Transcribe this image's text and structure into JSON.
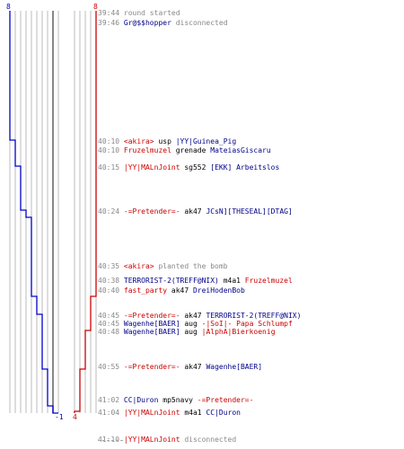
{
  "scoreboard": {
    "blue_top": "8",
    "red_top": "8",
    "blue_bottom": "-1",
    "red_bottom": "4",
    "colors": {
      "blue": "#0000cc",
      "red": "#cc0000",
      "grid": "#bbbbbb",
      "axis": "#555555"
    }
  },
  "events": [
    {
      "time": "39:44",
      "parts": [
        {
          "text": "round started",
          "c": "grey"
        }
      ]
    },
    {
      "time": "39:46",
      "parts": [
        {
          "text": "Gr@$$hopper",
          "c": "blue"
        },
        {
          "text": " disconnected",
          "c": "grey"
        }
      ]
    },
    {
      "time": "40:10",
      "parts": [
        {
          "text": "<akira>",
          "c": "red"
        },
        {
          "text": " usp ",
          "c": "dark"
        },
        {
          "text": "|YY|Guinea_Pig",
          "c": "blue"
        }
      ]
    },
    {
      "time": "40:10",
      "parts": [
        {
          "text": "Fruzelmuzel",
          "c": "red"
        },
        {
          "text": " grenade ",
          "c": "dark"
        },
        {
          "text": "MateiasGiscaru",
          "c": "blue"
        }
      ]
    },
    {
      "time": "40:15",
      "parts": [
        {
          "text": "|YY|MALnJoint",
          "c": "red"
        },
        {
          "text": " sg552 ",
          "c": "dark"
        },
        {
          "text": "[EKK] Arbeitslos",
          "c": "blue"
        }
      ]
    },
    {
      "time": "40:24",
      "parts": [
        {
          "text": "-=Pretender=-",
          "c": "red"
        },
        {
          "text": " ak47 ",
          "c": "dark"
        },
        {
          "text": "JCsN][THESEAL][DTAG]",
          "c": "blue"
        }
      ]
    },
    {
      "time": "40:35",
      "parts": [
        {
          "text": "<akira>",
          "c": "red"
        },
        {
          "text": " planted the bomb",
          "c": "grey"
        }
      ]
    },
    {
      "time": "40:38",
      "parts": [
        {
          "text": "TERRORIST-2(TREFF@NIX)",
          "c": "blue"
        },
        {
          "text": " m4a1 ",
          "c": "dark"
        },
        {
          "text": "Fruzelmuzel",
          "c": "red"
        }
      ]
    },
    {
      "time": "40:40",
      "parts": [
        {
          "text": "fast_party",
          "c": "red"
        },
        {
          "text": " ak47 ",
          "c": "dark"
        },
        {
          "text": "DreiHodenBob",
          "c": "blue"
        }
      ]
    },
    {
      "time": "40:45",
      "parts": [
        {
          "text": "-=Pretender=-",
          "c": "red"
        },
        {
          "text": " ak47 ",
          "c": "dark"
        },
        {
          "text": "TERRORIST-2(TREFF@NIX)",
          "c": "blue"
        }
      ]
    },
    {
      "time": "40:45",
      "parts": [
        {
          "text": "Wagenhe[BAER]",
          "c": "blue"
        },
        {
          "text": " aug ",
          "c": "dark"
        },
        {
          "text": "-|SoI|- Papa Schlumpf",
          "c": "red"
        }
      ]
    },
    {
      "time": "40:48",
      "parts": [
        {
          "text": "Wagenhe[BAER]",
          "c": "blue"
        },
        {
          "text": " aug ",
          "c": "dark"
        },
        {
          "text": "|AlphA|Bierkoenig",
          "c": "red"
        }
      ]
    },
    {
      "time": "40:55",
      "parts": [
        {
          "text": "-=Pretender=-",
          "c": "red"
        },
        {
          "text": " ak47 ",
          "c": "dark"
        },
        {
          "text": "Wagenhe[BAER]",
          "c": "blue"
        }
      ]
    },
    {
      "time": "41:02",
      "parts": [
        {
          "text": "CC|Duron",
          "c": "blue"
        },
        {
          "text": " mp5navy ",
          "c": "dark"
        },
        {
          "text": "-=Pretender=-",
          "c": "red"
        }
      ]
    },
    {
      "time": "41:04",
      "parts": [
        {
          "text": "|YY|MALnJoint",
          "c": "red"
        },
        {
          "text": " m4a1 ",
          "c": "dark"
        },
        {
          "text": "CC|Duron",
          "c": "blue"
        }
      ]
    },
    {
      "time": "41:10",
      "parts": [
        {
          "text": "|YY|MALnJoint",
          "c": "red"
        },
        {
          "text": " disconnected",
          "c": "grey"
        }
      ]
    }
  ],
  "blue_series": [
    8,
    8,
    7,
    6,
    5,
    4,
    4,
    4,
    3,
    2,
    2,
    2,
    1,
    1,
    0,
    0,
    -1
  ],
  "red_series": [
    8,
    8,
    8,
    8,
    8,
    8,
    8,
    8,
    7,
    7,
    7,
    6,
    5,
    5,
    5,
    4,
    4
  ]
}
